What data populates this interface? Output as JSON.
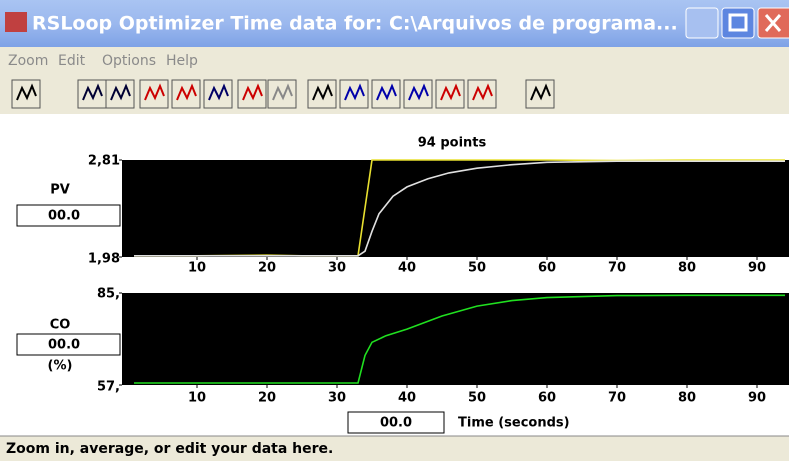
{
  "window": {
    "title": "RSLoop Optimizer Time data for: C:\\Arquivos de programa..."
  },
  "menu": [
    "Zoom",
    "Edit",
    "Options",
    "Help"
  ],
  "header": {
    "points_label": "94 points"
  },
  "chart_data": [
    {
      "type": "line",
      "label": "PV",
      "readout": "00.0",
      "xlim": [
        0,
        95
      ],
      "xticks": [
        10,
        20,
        30,
        40,
        50,
        60,
        70,
        80,
        90
      ],
      "ylim": [
        1.98,
        2.81
      ],
      "yticks": [
        {
          "value": 1.98,
          "label": "1,98"
        },
        {
          "value": 2.81,
          "label": "2,81"
        }
      ],
      "series": [
        {
          "color": "#e8e030",
          "x": [
            1,
            10,
            20,
            25,
            30,
            33,
            35,
            50,
            60,
            70,
            80,
            90,
            94
          ],
          "values": [
            1.99,
            1.99,
            1.995,
            1.99,
            1.99,
            1.99,
            2.81,
            2.81,
            2.81,
            2.805,
            2.81,
            2.81,
            2.81
          ]
        },
        {
          "color": "#e0e0e0",
          "x": [
            1,
            33,
            34,
            35,
            36,
            38,
            40,
            43,
            46,
            50,
            55,
            60,
            70,
            80,
            94
          ],
          "values": [
            1.99,
            1.99,
            2.03,
            2.2,
            2.35,
            2.5,
            2.58,
            2.65,
            2.7,
            2.74,
            2.77,
            2.79,
            2.8,
            2.8,
            2.8
          ]
        }
      ]
    },
    {
      "type": "line",
      "label": "CO",
      "readout": "00.0",
      "unit": "(%)",
      "xlim": [
        0,
        95
      ],
      "xticks": [
        10,
        20,
        30,
        40,
        50,
        60,
        70,
        80,
        90
      ],
      "ylim": [
        57,
        85
      ],
      "yticks": [
        {
          "value": 57,
          "label": "57,"
        },
        {
          "value": 85,
          "label": "85,"
        }
      ],
      "series": [
        {
          "color": "#20e020",
          "x": [
            1,
            33,
            34,
            35,
            37,
            40,
            45,
            50,
            55,
            60,
            70,
            80,
            94
          ],
          "values": [
            57.6,
            57.6,
            66,
            70,
            72,
            74,
            78,
            81,
            82.7,
            83.6,
            84.2,
            84.3,
            84.3
          ]
        }
      ]
    }
  ],
  "time_readout": "00.0",
  "x_label": "Time (seconds)",
  "status": "Zoom in, average, or edit your data here."
}
